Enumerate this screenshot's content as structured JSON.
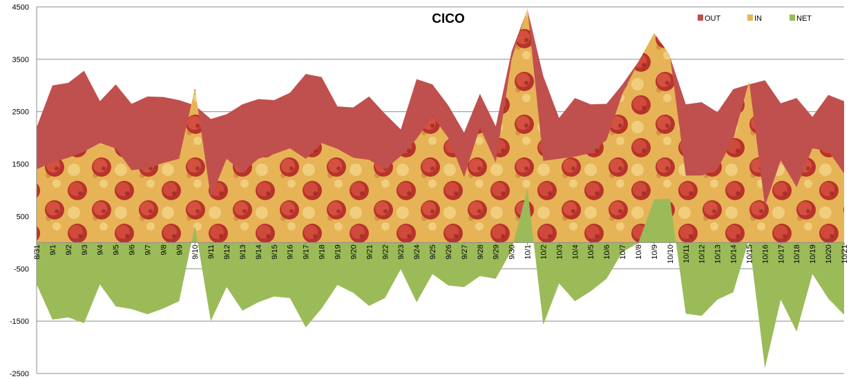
{
  "chart_data": {
    "type": "area",
    "title": "CICO",
    "xlabel": "",
    "ylabel": "",
    "ylim": [
      -2500,
      4500
    ],
    "yticks": [
      4500,
      3500,
      2500,
      1500,
      500,
      -500,
      -1500,
      -2500
    ],
    "grid": true,
    "legend_position": "top-right",
    "categories": [
      "8/31",
      "9/1",
      "9/2",
      "9/3",
      "9/4",
      "9/5",
      "9/6",
      "9/7",
      "9/8",
      "9/9",
      "9/10",
      "9/11",
      "9/12",
      "9/13",
      "9/14",
      "9/15",
      "9/16",
      "9/17",
      "9/18",
      "9/19",
      "9/20",
      "9/21",
      "9/22",
      "9/23",
      "9/24",
      "9/25",
      "9/26",
      "9/27",
      "9/28",
      "9/29",
      "9/30",
      "10/1",
      "10/2",
      "10/3",
      "10/4",
      "10/5",
      "10/6",
      "10/7",
      "10/8",
      "10/9",
      "10/10",
      "10/11",
      "10/12",
      "10/13",
      "10/14",
      "10/15",
      "10/16",
      "10/17",
      "10/18",
      "10/19",
      "10/20",
      "10/21"
    ],
    "series": [
      {
        "name": "OUT",
        "color": "#c0504d",
        "values": [
          2200,
          3000,
          3050,
          3280,
          2700,
          3020,
          2650,
          2790,
          2780,
          2720,
          2620,
          2360,
          2450,
          2640,
          2740,
          2720,
          2860,
          3220,
          3160,
          2600,
          2580,
          2790,
          2460,
          2160,
          3120,
          3020,
          2620,
          2100,
          2840,
          2220,
          3650,
          4450,
          3180,
          2380,
          2760,
          2640,
          2650,
          3020,
          3450,
          3980,
          3550,
          2640,
          2680,
          2490,
          2930,
          3020,
          3100,
          2660,
          2760,
          2400,
          2820,
          2700
        ]
      },
      {
        "name": "IN",
        "color": "#e8a83c",
        "values": [
          1400,
          1530,
          1620,
          1740,
          1900,
          1800,
          1380,
          1420,
          1520,
          1600,
          2950,
          860,
          1600,
          1340,
          1600,
          1690,
          1800,
          1600,
          1900,
          1790,
          1620,
          1580,
          1400,
          1650,
          1980,
          2420,
          2000,
          1250,
          2200,
          1530,
          3500,
          4480,
          1560,
          1600,
          1640,
          1710,
          1960,
          2840,
          3440,
          4000,
          3580,
          1280,
          1280,
          1400,
          1980,
          3080,
          700,
          1570,
          1060,
          1800,
          1750,
          1320
        ]
      },
      {
        "name": "NET",
        "color": "#9bbb59",
        "values": [
          -800,
          -1470,
          -1430,
          -1540,
          -800,
          -1220,
          -1270,
          -1370,
          -1260,
          -1120,
          320,
          -1500,
          -850,
          -1300,
          -1140,
          -1030,
          -1060,
          -1620,
          -1260,
          -810,
          -960,
          -1210,
          -1060,
          -510,
          -1140,
          -600,
          -820,
          -850,
          -640,
          -690,
          -150,
          1030,
          -1570,
          -780,
          -1120,
          -930,
          -690,
          -180,
          -10,
          820,
          840,
          -1360,
          -1400,
          -1090,
          -950,
          60,
          -2400,
          -1090,
          -1700,
          -600,
          -1070,
          -1380
        ]
      }
    ]
  }
}
